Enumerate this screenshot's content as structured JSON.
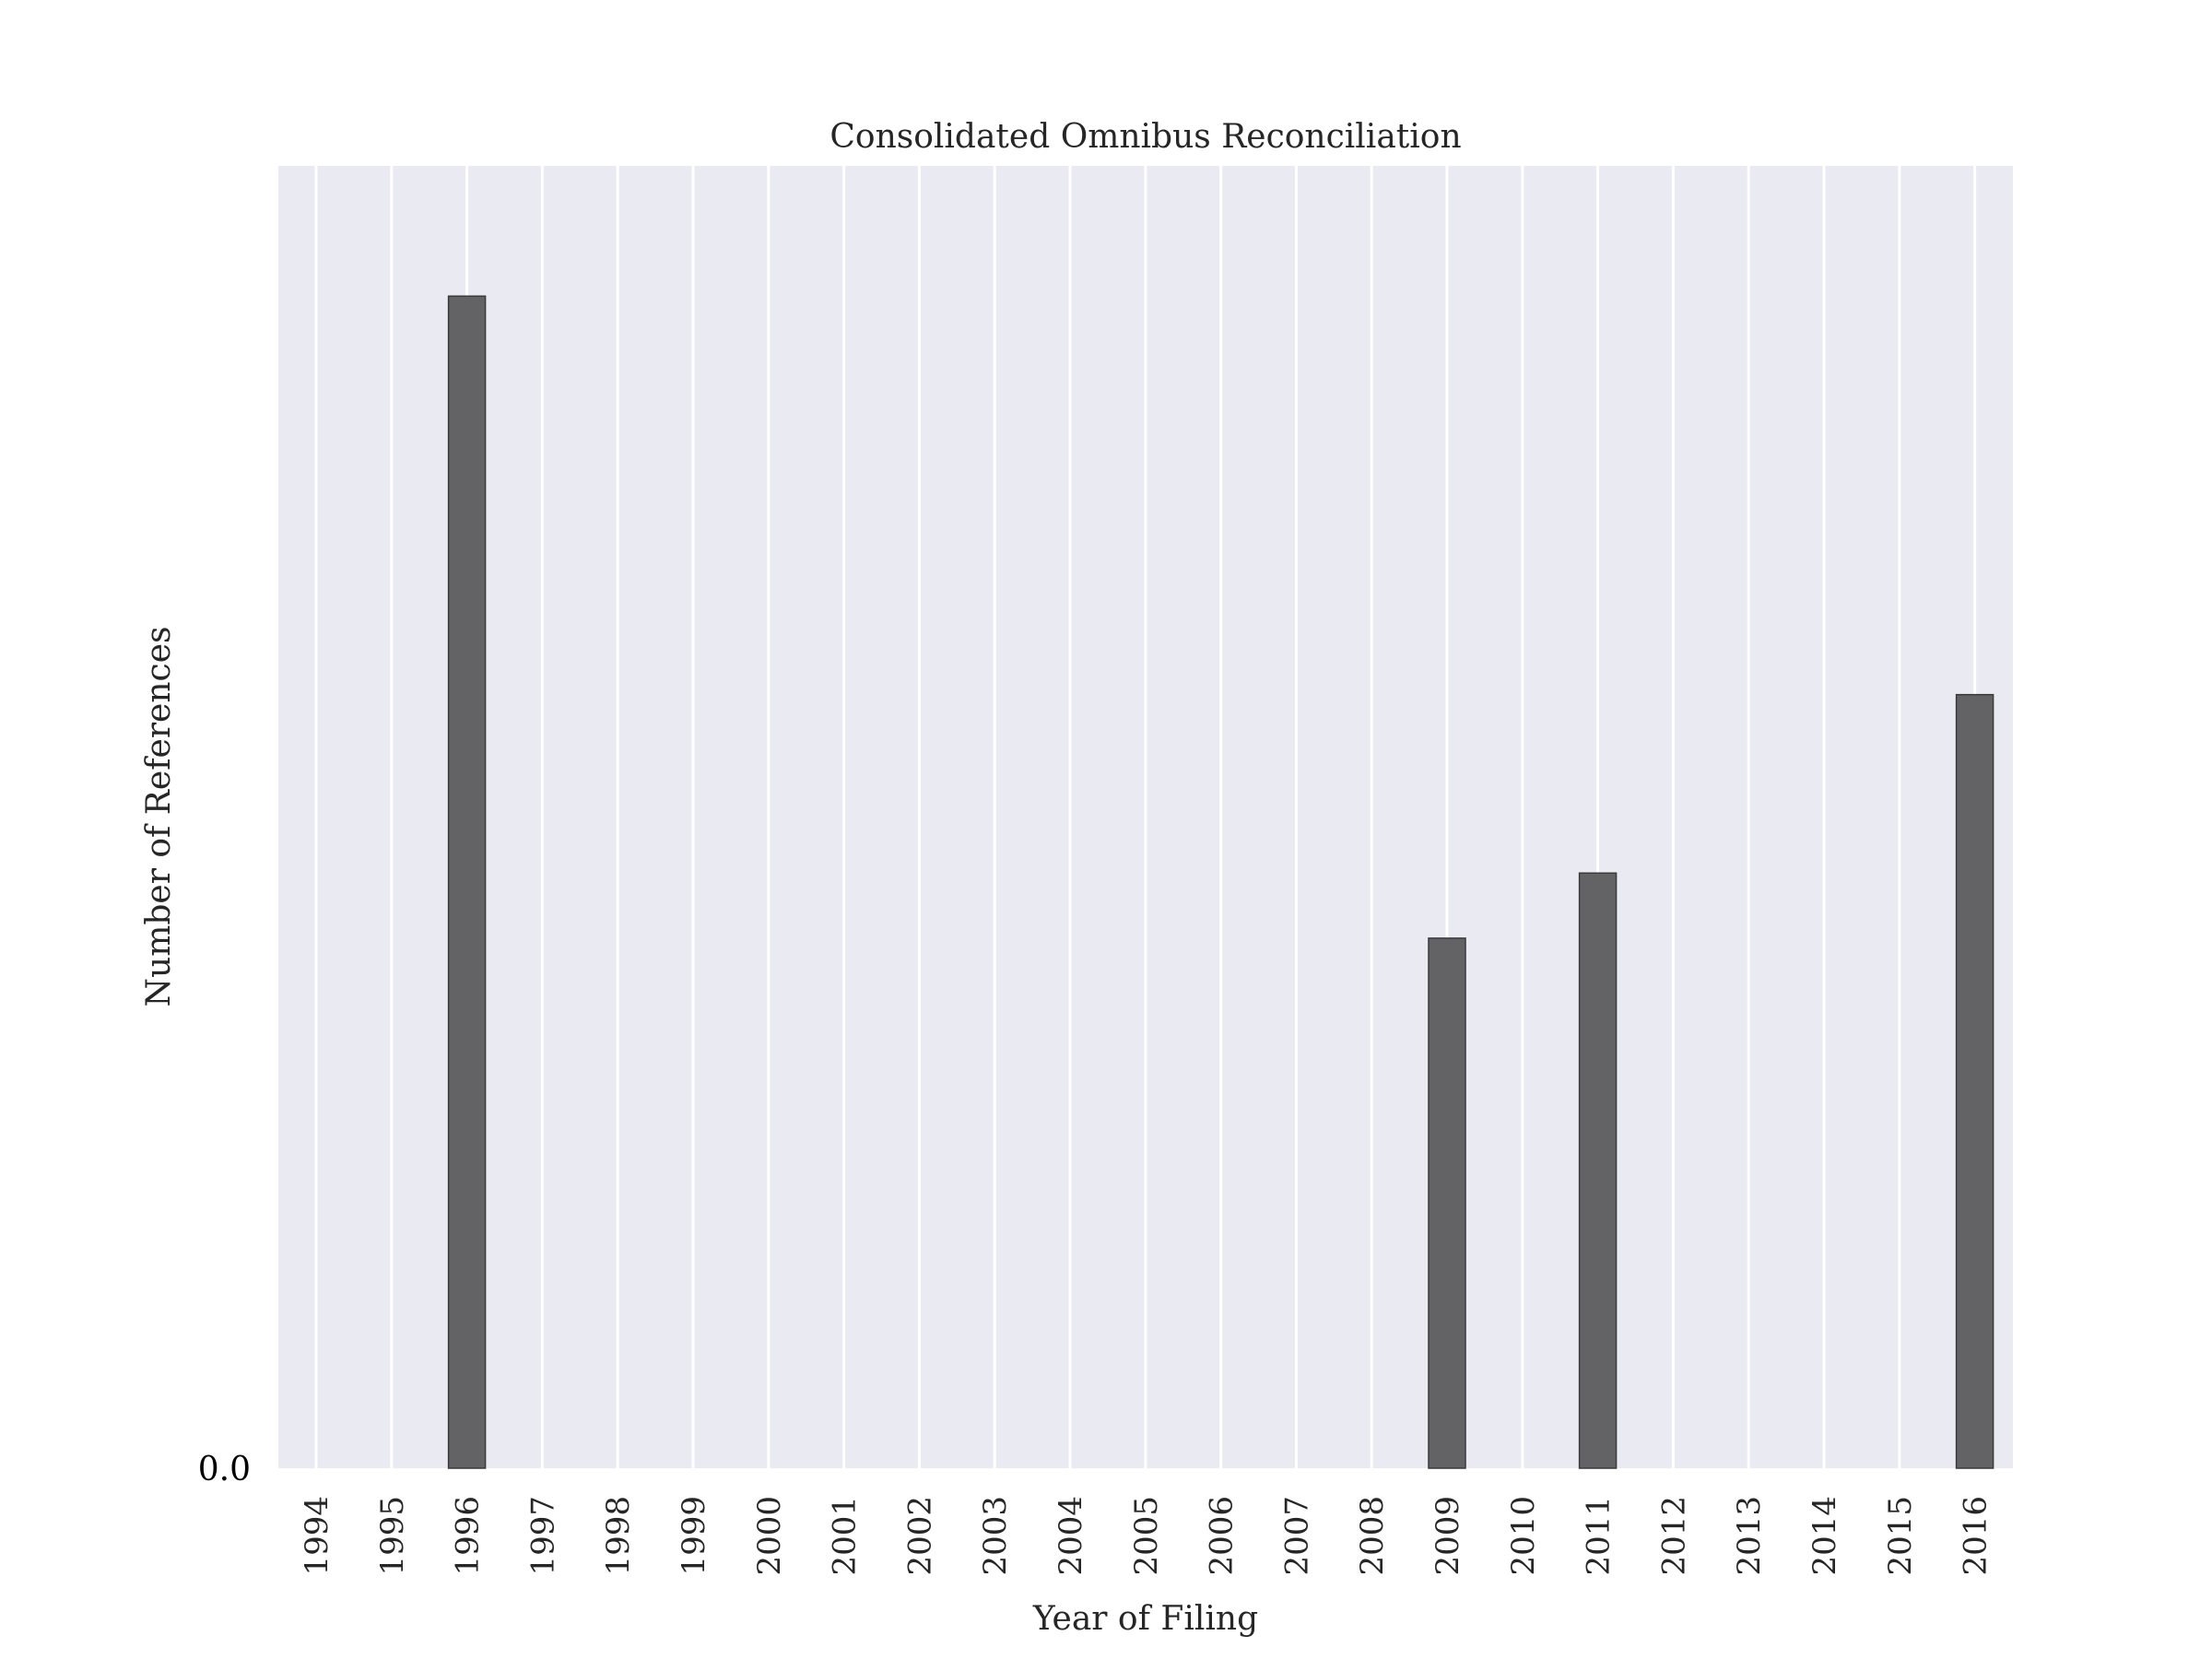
{
  "chart_data": {
    "type": "bar",
    "title": "Consolidated Omnibus Reconciliation",
    "xlabel": "Year of Filing",
    "ylabel": "Number of References",
    "categories": [
      "1994",
      "1995",
      "1996",
      "1997",
      "1998",
      "1999",
      "2000",
      "2001",
      "2002",
      "2003",
      "2004",
      "2005",
      "2006",
      "2007",
      "2008",
      "2009",
      "2010",
      "2011",
      "2012",
      "2013",
      "2014",
      "2015",
      "2016"
    ],
    "values": [
      0,
      0,
      9.0,
      0,
      0,
      0,
      0,
      0,
      0,
      0,
      0,
      0,
      0,
      0,
      0,
      4.07,
      0,
      4.57,
      0,
      0,
      0,
      0,
      5.94
    ],
    "yticks": [
      {
        "value": 0,
        "label": "0.0"
      }
    ],
    "ylim": [
      0,
      10
    ],
    "grid": "vertical",
    "colors": {
      "background": "#EAEAF2",
      "bar": "#636365",
      "bar_edge": "#3a3a3a",
      "grid": "#ffffff"
    }
  }
}
